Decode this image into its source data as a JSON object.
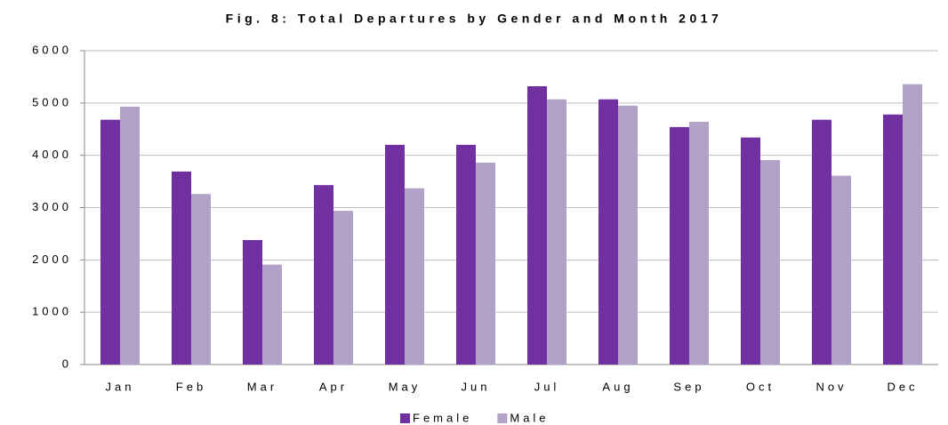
{
  "chart_data": {
    "type": "bar",
    "title": "Fig. 8: Total Departures by Gender and Month 2017",
    "categories": [
      "Jan",
      "Feb",
      "Mar",
      "Apr",
      "May",
      "Jun",
      "Jul",
      "Aug",
      "Sep",
      "Oct",
      "Nov",
      "Dec"
    ],
    "series": [
      {
        "name": "Female",
        "color": "#7030a0",
        "values": [
          4680,
          3690,
          2380,
          3430,
          4200,
          4200,
          5320,
          5070,
          4540,
          4340,
          4680,
          4780
        ]
      },
      {
        "name": "Male",
        "color": "#b3a2c7",
        "values": [
          4930,
          3260,
          1910,
          2940,
          3370,
          3860,
          5070,
          4950,
          4640,
          3910,
          3610,
          5360
        ]
      }
    ],
    "ylim": [
      0,
      6000
    ],
    "yticks": [
      0,
      1000,
      2000,
      3000,
      4000,
      5000,
      6000
    ],
    "grid": true,
    "legend": "bottom"
  }
}
